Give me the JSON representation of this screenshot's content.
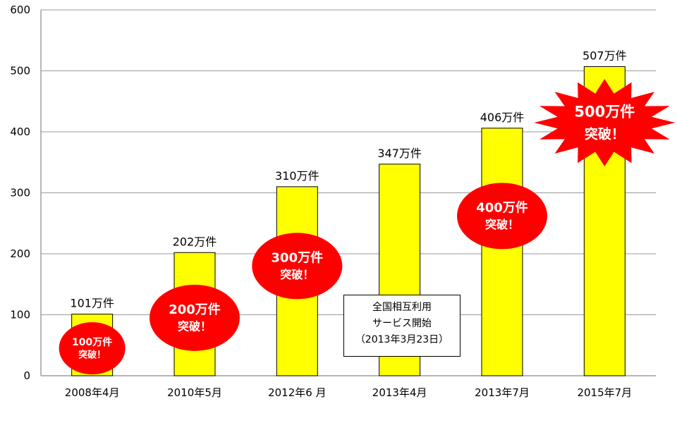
{
  "chart_data": {
    "type": "bar",
    "categories": [
      "2008年4月",
      "2010年5月",
      "2012年6 月",
      "2013年4月",
      "2013年7月",
      "2015年7月"
    ],
    "values": [
      101,
      202,
      310,
      347,
      406,
      507
    ],
    "data_labels": [
      "101万件",
      "202万件",
      "310万件",
      "347万件",
      "406万件",
      "507万件"
    ],
    "ylim": [
      0,
      600
    ],
    "yticks": [
      0,
      100,
      200,
      300,
      400,
      500,
      600
    ],
    "grid": true,
    "legend": "none",
    "title": "",
    "xlabel": "",
    "ylabel": "",
    "bar_color": "#FFFF00",
    "badges": [
      {
        "category_index": 0,
        "line1": "100万件",
        "line2": "突破！",
        "shape": "ellipse",
        "y_value": 45
      },
      {
        "category_index": 1,
        "line1": "200万件",
        "line2": "突破！",
        "shape": "ellipse",
        "y_value": 95
      },
      {
        "category_index": 2,
        "line1": "300万件",
        "line2": "突破！",
        "shape": "ellipse",
        "y_value": 180
      },
      {
        "category_index": 4,
        "line1": "400万件",
        "line2": "突破！",
        "shape": "ellipse",
        "y_value": 262
      },
      {
        "category_index": 5,
        "line1": "500万件",
        "line2": "突破！",
        "shape": "starburst",
        "y_value": 415
      }
    ],
    "badge_color": "#FF0000",
    "annotation": {
      "lines": [
        "全国相互利用",
        "サービス開始",
        "（2013年3月23日）"
      ]
    }
  }
}
